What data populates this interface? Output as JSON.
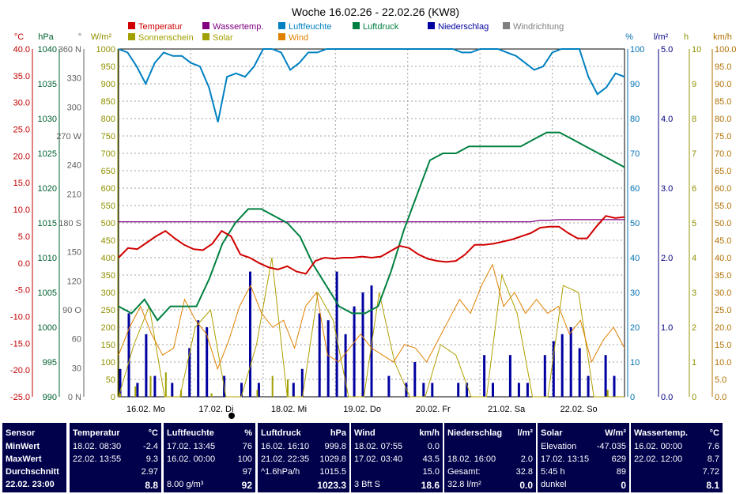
{
  "chart_data": {
    "type": "line",
    "title": "Woche 16.02.26 - 22.02.26 (KW8)",
    "x_labels": [
      "16.02.  Mo",
      "17.02.  Di",
      "18.02.  Mi",
      "19.02.  Do",
      "20.02.  Fr",
      "21.02.  Sa",
      "22.02.  So"
    ],
    "legend": [
      {
        "name": "Temperatur",
        "color": "#d00000"
      },
      {
        "name": "Wassertemp.",
        "color": "#800080"
      },
      {
        "name": "Luftfeuchte",
        "color": "#0080c0"
      },
      {
        "name": "Luftdruck",
        "color": "#008040"
      },
      {
        "name": "Niederschlag",
        "color": "#0000a0"
      },
      {
        "name": "Windrichtung",
        "color": "#808080"
      },
      {
        "name": "Sonnenschein",
        "color": "#a0a000"
      },
      {
        "name": "Solar",
        "color": "#a0a000"
      },
      {
        "name": "Wind",
        "color": "#e08000"
      }
    ],
    "axes": [
      {
        "unit": "°C",
        "color": "#c00000",
        "ticks": [
          "40.0",
          "35.0",
          "30.0",
          "25.0",
          "20.0",
          "15.0",
          "10.0",
          "5.0",
          "0.0",
          "-5.0",
          "-10.0",
          "-15.0",
          "-20.0",
          "-25.0"
        ]
      },
      {
        "unit": "hPa",
        "color": "#006030",
        "ticks": [
          "1040",
          "1035",
          "1030",
          "1025",
          "1020",
          "1015",
          "1010",
          "1005",
          "1000",
          "995",
          "990"
        ]
      },
      {
        "unit": "°",
        "color": "#606060",
        "ticks": [
          "360 N",
          "330",
          "300",
          "270 W",
          "240",
          "210",
          "180 S",
          "150",
          "120",
          "90 O",
          "60",
          "30",
          "0 N"
        ]
      },
      {
        "unit": "W/m²",
        "color": "#909000",
        "ticks": [
          "1000",
          "950",
          "900",
          "850",
          "800",
          "750",
          "700",
          "650",
          "600",
          "550",
          "500",
          "450",
          "400",
          "350",
          "300",
          "250",
          "200",
          "150",
          "100",
          "50",
          "0"
        ]
      },
      {
        "unit": "%",
        "color": "#0070b0",
        "ticks": [
          "100",
          "90",
          "80",
          "70",
          "60",
          "50",
          "40",
          "30",
          "20",
          "10",
          "0"
        ]
      },
      {
        "unit": "l/m²",
        "color": "#000080",
        "ticks": [
          "5.0",
          "4.0",
          "3.0",
          "2.0",
          "1.0",
          "0.0"
        ]
      },
      {
        "unit": "h",
        "color": "#909000",
        "ticks": [
          "10",
          "9",
          "8",
          "7",
          "6",
          "5",
          "4",
          "3",
          "2",
          "1",
          "0"
        ]
      },
      {
        "unit": "km/h",
        "color": "#b07000",
        "ticks": [
          "100.0",
          "95.0",
          "90.0",
          "85.0",
          "80.0",
          "75.0",
          "70.0",
          "65.0",
          "60.0",
          "55.0",
          "50.0",
          "45.0",
          "40.0",
          "35.0",
          "30.0",
          "25.0",
          "20.0",
          "15.0",
          "10.0",
          "5.0",
          "0.0"
        ]
      }
    ],
    "series": [
      {
        "name": "Temperatur",
        "unit": "°C",
        "range": [
          -25,
          40
        ],
        "values": [
          1.0,
          2.8,
          2.6,
          3.8,
          5.0,
          6.0,
          4.6,
          3.4,
          2.6,
          2.4,
          3.6,
          6.0,
          5.0,
          1.6,
          1.0,
          0.0,
          -0.8,
          -1.2,
          -0.6,
          -1.6,
          -2.0,
          0.4,
          1.0,
          0.8,
          1.0,
          1.0,
          1.2,
          1.0,
          1.2,
          2.2,
          3.2,
          2.8,
          1.6,
          0.8,
          0.4,
          0.2,
          0.4,
          1.6,
          3.4,
          3.4,
          3.6,
          4.0,
          4.4,
          5.0,
          5.6,
          6.6,
          6.8,
          6.8,
          5.6,
          4.6,
          4.6,
          6.8,
          8.8,
          8.4,
          8.6
        ]
      },
      {
        "name": "Wassertemp.",
        "unit": "°C",
        "range": [
          -25,
          40
        ],
        "values": [
          7.7,
          7.7,
          7.7,
          7.7,
          7.7,
          7.7,
          7.7,
          7.7,
          7.7,
          7.7,
          7.7,
          7.7,
          7.7,
          7.7,
          7.7,
          7.7,
          7.7,
          7.7,
          7.7,
          7.7,
          7.7,
          7.7,
          7.7,
          7.7,
          7.7,
          7.7,
          7.7,
          7.7,
          7.7,
          7.7,
          7.7,
          7.7,
          7.7,
          7.7,
          7.7,
          7.7,
          7.7,
          7.7,
          7.7,
          7.7,
          7.7,
          7.7,
          7.7,
          7.7,
          7.7,
          8.0,
          8.0,
          8.1,
          8.1,
          8.1,
          8.1,
          8.1,
          8.1,
          8.1,
          8.1
        ]
      },
      {
        "name": "Luftfeuchte",
        "unit": "%",
        "range": [
          0,
          100
        ],
        "values": [
          100,
          99,
          95,
          90,
          96,
          99,
          98,
          98,
          96,
          95,
          89,
          79,
          92,
          93,
          92,
          95,
          100,
          100,
          99,
          94,
          96,
          99,
          99,
          100,
          100,
          100,
          100,
          100,
          100,
          100,
          100,
          100,
          100,
          100,
          100,
          100,
          100,
          100,
          99,
          99,
          100,
          100,
          100,
          99,
          98,
          96,
          94,
          95,
          99,
          100,
          100,
          100,
          92,
          87,
          89,
          93,
          92
        ]
      },
      {
        "name": "Luftdruck",
        "unit": "hPa",
        "range": [
          990,
          1040
        ],
        "values": [
          1003,
          1002,
          1004,
          1001,
          1003,
          1003,
          1003,
          1007,
          1012,
          1015,
          1017,
          1017,
          1016,
          1015,
          1013,
          1009,
          1006,
          1003,
          1002,
          1002,
          1003,
          1008,
          1014,
          1019,
          1024,
          1025,
          1025,
          1026,
          1026,
          1026,
          1026,
          1026,
          1027,
          1028,
          1028,
          1027,
          1026,
          1025,
          1024,
          1023
        ]
      },
      {
        "name": "Niederschlag",
        "unit": "l/m²",
        "range": [
          0,
          5
        ],
        "bars": [
          0.4,
          1.2,
          0.2,
          0.9,
          0.3,
          0,
          0.2,
          0,
          0.7,
          1.1,
          1.0,
          0,
          0.3,
          0,
          0.2,
          1.8,
          0.2,
          0,
          0,
          0,
          0.2,
          0.4,
          0,
          1.2,
          1.1,
          1.8,
          0.9,
          1.3,
          1.5,
          1.6,
          0,
          0.3,
          0,
          0.2,
          0.5,
          0.2,
          0.2,
          0,
          0,
          0.2,
          0.2,
          0,
          0.6,
          0.2,
          0,
          0.6,
          0.2,
          0.2,
          0,
          0.6,
          0.8,
          0.9,
          1.0,
          0.7,
          0.3,
          0,
          0.6,
          0.3,
          0
        ]
      },
      {
        "name": "Sonnenschein",
        "unit": "h",
        "range": [
          0,
          10
        ],
        "bars": [
          0.1,
          0.3,
          0.6,
          0.7,
          0.2,
          0,
          0.1,
          0,
          0,
          0.2,
          0.6,
          0.5,
          0,
          0,
          0,
          0,
          0,
          0,
          0,
          0,
          0,
          0,
          0,
          0,
          0,
          0,
          0,
          0,
          0,
          0,
          0,
          0,
          0.2,
          0
        ]
      },
      {
        "name": "Solar",
        "unit": "W/m²",
        "range": [
          0,
          1000
        ],
        "values": [
          0,
          150,
          260,
          0,
          0,
          200,
          250,
          0,
          0,
          150,
          400,
          0,
          0,
          300,
          220,
          0,
          0,
          300,
          100,
          0,
          0,
          150,
          120,
          0,
          0,
          350,
          240,
          0,
          0,
          320,
          300,
          0,
          0,
          0
        ]
      },
      {
        "name": "Wind",
        "unit": "km/h",
        "range": [
          0,
          100
        ],
        "values": [
          12,
          20,
          26,
          18,
          12,
          14,
          28,
          22,
          18,
          8,
          16,
          26,
          32,
          24,
          20,
          22,
          14,
          26,
          30,
          12,
          10,
          14,
          18,
          14,
          12,
          10,
          15,
          14,
          10,
          16,
          22,
          28,
          24,
          32,
          38,
          26,
          30,
          24,
          28,
          24,
          26,
          18,
          22,
          10,
          16,
          20,
          14
        ]
      },
      {
        "name": "Windrichtung",
        "unit": "°",
        "range": [
          0,
          360
        ]
      }
    ]
  },
  "table": {
    "sensor": {
      "header": "Sensor",
      "rows": [
        "MinWert",
        "MaxWert",
        "Durchschnitt",
        "22.02.  23:00"
      ]
    },
    "temperatur": {
      "header": "Temperatur",
      "unit": "°C",
      "rows": [
        [
          "18.02.  08:30",
          "-2.4"
        ],
        [
          "22.02.  13:55",
          "9.3"
        ],
        [
          "",
          "2.97"
        ],
        [
          "",
          "8.8"
        ]
      ]
    },
    "luftfeuchte": {
      "header": "Luftfeuchte",
      "unit": "%",
      "rows": [
        [
          "17.02.  13:45",
          "76"
        ],
        [
          "16.02.  00:00",
          "100"
        ],
        [
          "",
          "97"
        ],
        [
          "8.00 g/m³",
          "92"
        ]
      ]
    },
    "luftdruck": {
      "header": "Luftdruck",
      "unit": "hPa",
      "rows": [
        [
          "16.02.  16:10",
          "999.8"
        ],
        [
          "21.02.  22:35",
          "1029.8"
        ],
        [
          "^1.6hPa/h",
          "1015.5"
        ],
        [
          "",
          "1023.3"
        ]
      ]
    },
    "wind": {
      "header": "Wind",
      "unit": "km/h",
      "rows": [
        [
          "18.02.  07:55",
          "0.0"
        ],
        [
          "17.02.  03:40",
          "43.5"
        ],
        [
          "",
          "15.0"
        ],
        [
          "3 Bft S",
          "18.6"
        ]
      ]
    },
    "niederschlag": {
      "header": "Niederschlag",
      "unit": "l/m²",
      "rows": [
        [
          "",
          ""
        ],
        [
          "18.02.  16:00",
          "2.0"
        ],
        [
          "Gesamt:",
          "32.8"
        ],
        [
          "32.8 l/m²",
          "0.0"
        ]
      ]
    },
    "solar": {
      "header": "Solar",
      "unit": "W/m²",
      "rows": [
        [
          "Elevation",
          "-47.035"
        ],
        [
          "17.02.  13:15",
          "629"
        ],
        [
          "5:45 h",
          "89"
        ],
        [
          "dunkel",
          "0"
        ]
      ]
    },
    "wassertemp": {
      "header": "Wassertemp.",
      "unit": "°C",
      "rows": [
        [
          "16.02.  00:00",
          "7.6"
        ],
        [
          "22.02.  12:00",
          "8.7"
        ],
        [
          "",
          "7.72"
        ],
        [
          "",
          "8.1"
        ]
      ]
    }
  }
}
